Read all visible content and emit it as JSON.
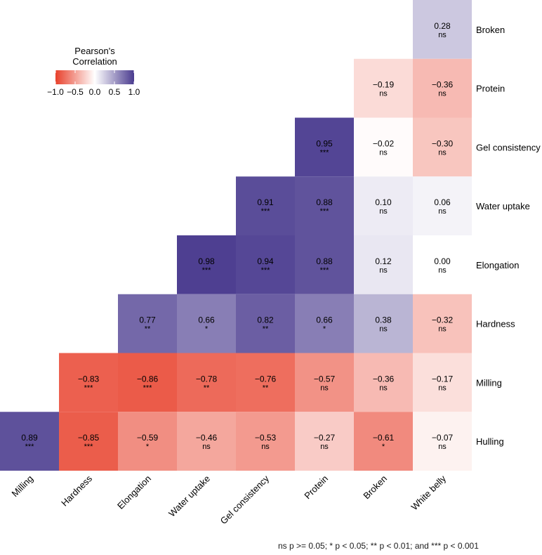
{
  "chart_data": {
    "type": "heatmap",
    "title": "",
    "legend": {
      "title_line1": "Pearson's",
      "title_line2": "Correlation",
      "ticks": [
        "−1.0",
        "−0.5",
        "0.0",
        "0.5",
        "1.0"
      ],
      "tick_values": [
        -1.0,
        -0.5,
        0.0,
        0.5,
        1.0
      ],
      "range": [
        -1,
        1
      ],
      "placement": "top-left"
    },
    "color_scale": {
      "low": "#e8402b",
      "mid": "#ffffff",
      "high": "#4a3b8f"
    },
    "columns": [
      "Milling",
      "Hardness",
      "Elongation",
      "Water uptake",
      "Gel consistency",
      "Protein",
      "Broken",
      "White belly"
    ],
    "rows": [
      "Broken",
      "Protein",
      "Gel consistency",
      "Water uptake",
      "Elongation",
      "Hardness",
      "Milling",
      "Hulling"
    ],
    "cells": [
      {
        "row": "Broken",
        "col": "White belly",
        "value": 0.28,
        "label": "0.28",
        "sig": "ns"
      },
      {
        "row": "Protein",
        "col": "Broken",
        "value": -0.19,
        "label": "−0.19",
        "sig": "ns"
      },
      {
        "row": "Protein",
        "col": "White belly",
        "value": -0.36,
        "label": "−0.36",
        "sig": "ns"
      },
      {
        "row": "Gel consistency",
        "col": "Protein",
        "value": 0.95,
        "label": "0.95",
        "sig": "***"
      },
      {
        "row": "Gel consistency",
        "col": "Broken",
        "value": -0.02,
        "label": "−0.02",
        "sig": "ns"
      },
      {
        "row": "Gel consistency",
        "col": "White belly",
        "value": -0.3,
        "label": "−0.30",
        "sig": "ns"
      },
      {
        "row": "Water uptake",
        "col": "Gel consistency",
        "value": 0.91,
        "label": "0.91",
        "sig": "***"
      },
      {
        "row": "Water uptake",
        "col": "Protein",
        "value": 0.88,
        "label": "0.88",
        "sig": "***"
      },
      {
        "row": "Water uptake",
        "col": "Broken",
        "value": 0.1,
        "label": "0.10",
        "sig": "ns"
      },
      {
        "row": "Water uptake",
        "col": "White belly",
        "value": 0.06,
        "label": "0.06",
        "sig": "ns"
      },
      {
        "row": "Elongation",
        "col": "Water uptake",
        "value": 0.98,
        "label": "0.98",
        "sig": "***"
      },
      {
        "row": "Elongation",
        "col": "Gel consistency",
        "value": 0.94,
        "label": "0.94",
        "sig": "***"
      },
      {
        "row": "Elongation",
        "col": "Protein",
        "value": 0.88,
        "label": "0.88",
        "sig": "***"
      },
      {
        "row": "Elongation",
        "col": "Broken",
        "value": 0.12,
        "label": "0.12",
        "sig": "ns"
      },
      {
        "row": "Elongation",
        "col": "White belly",
        "value": 0.0,
        "label": "0.00",
        "sig": "ns"
      },
      {
        "row": "Hardness",
        "col": "Elongation",
        "value": 0.77,
        "label": "0.77",
        "sig": "**"
      },
      {
        "row": "Hardness",
        "col": "Water uptake",
        "value": 0.66,
        "label": "0.66",
        "sig": "*"
      },
      {
        "row": "Hardness",
        "col": "Gel consistency",
        "value": 0.82,
        "label": "0.82",
        "sig": "**"
      },
      {
        "row": "Hardness",
        "col": "Protein",
        "value": 0.66,
        "label": "0.66",
        "sig": "*"
      },
      {
        "row": "Hardness",
        "col": "Broken",
        "value": 0.38,
        "label": "0.38",
        "sig": "ns"
      },
      {
        "row": "Hardness",
        "col": "White belly",
        "value": -0.32,
        "label": "−0.32",
        "sig": "ns"
      },
      {
        "row": "Milling",
        "col": "Hardness",
        "value": -0.83,
        "label": "−0.83",
        "sig": "***"
      },
      {
        "row": "Milling",
        "col": "Elongation",
        "value": -0.86,
        "label": "−0.86",
        "sig": "***"
      },
      {
        "row": "Milling",
        "col": "Water uptake",
        "value": -0.78,
        "label": "−0.78",
        "sig": "**"
      },
      {
        "row": "Milling",
        "col": "Gel consistency",
        "value": -0.76,
        "label": "−0.76",
        "sig": "**"
      },
      {
        "row": "Milling",
        "col": "Protein",
        "value": -0.57,
        "label": "−0.57",
        "sig": "ns"
      },
      {
        "row": "Milling",
        "col": "Broken",
        "value": -0.36,
        "label": "−0.36",
        "sig": "ns"
      },
      {
        "row": "Milling",
        "col": "White belly",
        "value": -0.17,
        "label": "−0.17",
        "sig": "ns"
      },
      {
        "row": "Hulling",
        "col": "Milling",
        "value": 0.89,
        "label": "0.89",
        "sig": "***"
      },
      {
        "row": "Hulling",
        "col": "Hardness",
        "value": -0.85,
        "label": "−0.85",
        "sig": "***"
      },
      {
        "row": "Hulling",
        "col": "Elongation",
        "value": -0.59,
        "label": "−0.59",
        "sig": "*"
      },
      {
        "row": "Hulling",
        "col": "Water uptake",
        "value": -0.46,
        "label": "−0.46",
        "sig": "ns"
      },
      {
        "row": "Hulling",
        "col": "Gel consistency",
        "value": -0.53,
        "label": "−0.53",
        "sig": "ns"
      },
      {
        "row": "Hulling",
        "col": "Protein",
        "value": -0.27,
        "label": "−0.27",
        "sig": "ns"
      },
      {
        "row": "Hulling",
        "col": "Broken",
        "value": -0.61,
        "label": "−0.61",
        "sig": "*"
      },
      {
        "row": "Hulling",
        "col": "White belly",
        "value": -0.07,
        "label": "−0.07",
        "sig": "ns"
      }
    ],
    "caption": "ns p >= 0.05; * p < 0.05; ** p < 0.01; and *** p < 0.001"
  }
}
